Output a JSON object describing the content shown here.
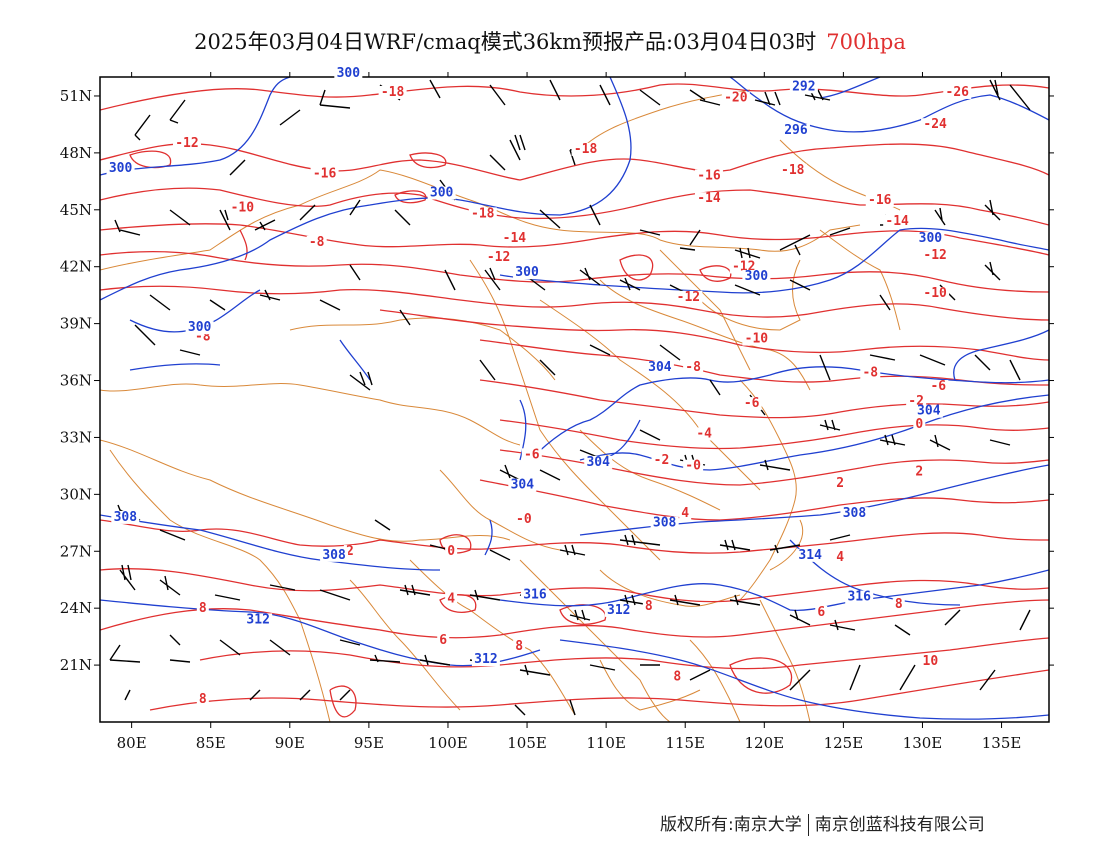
{
  "title": {
    "main": "2025年03月04日WRF/cmaq模式36km预报产品:03月04日03时",
    "level": "700hpa"
  },
  "copyright": {
    "left": "版权所有:南京大学",
    "right": "南京创蓝科技有限公司"
  },
  "colors": {
    "temperature_contour": "#e03030",
    "geopotential_contour": "#2040d0",
    "boundary": "#d9893a",
    "wind_barb": "#000000"
  },
  "map": {
    "lon_range": [
      78,
      138
    ],
    "lat_range": [
      18,
      52
    ],
    "lon_ticks": [
      {
        "value": 80,
        "label": "80E"
      },
      {
        "value": 85,
        "label": "85E"
      },
      {
        "value": 90,
        "label": "90E"
      },
      {
        "value": 95,
        "label": "95E"
      },
      {
        "value": 100,
        "label": "100E"
      },
      {
        "value": 105,
        "label": "105E"
      },
      {
        "value": 110,
        "label": "110E"
      },
      {
        "value": 115,
        "label": "115E"
      },
      {
        "value": 120,
        "label": "120E"
      },
      {
        "value": 125,
        "label": "125E"
      },
      {
        "value": 130,
        "label": "130E"
      },
      {
        "value": 135,
        "label": "135E"
      }
    ],
    "lat_ticks": [
      {
        "value": 51,
        "label": "51N"
      },
      {
        "value": 48,
        "label": "48N"
      },
      {
        "value": 45,
        "label": "45N"
      },
      {
        "value": 42,
        "label": "42N"
      },
      {
        "value": 39,
        "label": "39N"
      },
      {
        "value": 36,
        "label": "36N"
      },
      {
        "value": 33,
        "label": "33N"
      },
      {
        "value": 30,
        "label": "30N"
      },
      {
        "value": 27,
        "label": "27N"
      },
      {
        "value": 24,
        "label": "24N"
      },
      {
        "value": 21,
        "label": "21N"
      }
    ],
    "temperature_labels": [
      {
        "text": "-18",
        "lon": 96.5,
        "lat": 51.0
      },
      {
        "text": "-20",
        "lon": 118.2,
        "lat": 50.7
      },
      {
        "text": "-26",
        "lon": 132.2,
        "lat": 51.0
      },
      {
        "text": "-24",
        "lon": 130.8,
        "lat": 49.3
      },
      {
        "text": "-12",
        "lon": 83.5,
        "lat": 48.3
      },
      {
        "text": "-18",
        "lon": 108.7,
        "lat": 48.0
      },
      {
        "text": "-16",
        "lon": 92.2,
        "lat": 46.7
      },
      {
        "text": "-16",
        "lon": 116.5,
        "lat": 46.6
      },
      {
        "text": "-18",
        "lon": 121.8,
        "lat": 46.9
      },
      {
        "text": "-14",
        "lon": 116.5,
        "lat": 45.4
      },
      {
        "text": "-16",
        "lon": 127.3,
        "lat": 45.3
      },
      {
        "text": "-10",
        "lon": 87.0,
        "lat": 44.9
      },
      {
        "text": "-18",
        "lon": 102.2,
        "lat": 44.6
      },
      {
        "text": "-14",
        "lon": 128.4,
        "lat": 44.2
      },
      {
        "text": "-14",
        "lon": 104.2,
        "lat": 43.3
      },
      {
        "text": "-8",
        "lon": 91.7,
        "lat": 43.1
      },
      {
        "text": "-12",
        "lon": 103.2,
        "lat": 42.3
      },
      {
        "text": "-12",
        "lon": 130.8,
        "lat": 42.4
      },
      {
        "text": "-12",
        "lon": 118.7,
        "lat": 41.8
      },
      {
        "text": "-12",
        "lon": 115.2,
        "lat": 40.2
      },
      {
        "text": "-10",
        "lon": 130.8,
        "lat": 40.4
      },
      {
        "text": "-8",
        "lon": 84.5,
        "lat": 38.1
      },
      {
        "text": "-10",
        "lon": 119.5,
        "lat": 38.0
      },
      {
        "text": "-8",
        "lon": 115.5,
        "lat": 36.5
      },
      {
        "text": "-8",
        "lon": 126.7,
        "lat": 36.2
      },
      {
        "text": "-6",
        "lon": 131.0,
        "lat": 35.5
      },
      {
        "text": "-2",
        "lon": 129.6,
        "lat": 34.7
      },
      {
        "text": "-6",
        "lon": 119.2,
        "lat": 34.6
      },
      {
        "text": "-4",
        "lon": 116.2,
        "lat": 33.0
      },
      {
        "text": "0",
        "lon": 129.8,
        "lat": 33.5
      },
      {
        "text": "-6",
        "lon": 105.3,
        "lat": 31.9
      },
      {
        "text": "-2",
        "lon": 113.5,
        "lat": 31.6
      },
      {
        "text": "-0",
        "lon": 115.5,
        "lat": 31.3
      },
      {
        "text": "2",
        "lon": 129.8,
        "lat": 31.0
      },
      {
        "text": "2",
        "lon": 124.8,
        "lat": 30.4
      },
      {
        "text": "4",
        "lon": 115.0,
        "lat": 28.8
      },
      {
        "text": "-0",
        "lon": 104.8,
        "lat": 28.5
      },
      {
        "text": "4",
        "lon": 124.8,
        "lat": 26.5
      },
      {
        "text": "2",
        "lon": 93.8,
        "lat": 26.8
      },
      {
        "text": "0",
        "lon": 100.2,
        "lat": 26.8
      },
      {
        "text": "4",
        "lon": 100.2,
        "lat": 24.3
      },
      {
        "text": "8",
        "lon": 84.5,
        "lat": 23.8
      },
      {
        "text": "8",
        "lon": 112.7,
        "lat": 23.9
      },
      {
        "text": "6",
        "lon": 123.6,
        "lat": 23.6
      },
      {
        "text": "8",
        "lon": 128.5,
        "lat": 24.0
      },
      {
        "text": "6",
        "lon": 99.7,
        "lat": 22.1
      },
      {
        "text": "8",
        "lon": 104.5,
        "lat": 21.8
      },
      {
        "text": "10",
        "lon": 130.5,
        "lat": 21.0
      },
      {
        "text": "8",
        "lon": 114.5,
        "lat": 20.2
      },
      {
        "text": "8",
        "lon": 84.5,
        "lat": 19.0
      }
    ],
    "geopotential_labels": [
      {
        "text": "300",
        "lon": 93.7,
        "lat": 52.0
      },
      {
        "text": "292",
        "lon": 122.5,
        "lat": 51.3
      },
      {
        "text": "296",
        "lon": 122.0,
        "lat": 49.0
      },
      {
        "text": "300",
        "lon": 79.3,
        "lat": 47.0
      },
      {
        "text": "300",
        "lon": 99.6,
        "lat": 45.7
      },
      {
        "text": "300",
        "lon": 130.5,
        "lat": 43.3
      },
      {
        "text": "300",
        "lon": 105.0,
        "lat": 41.5
      },
      {
        "text": "300",
        "lon": 119.5,
        "lat": 41.3
      },
      {
        "text": "300",
        "lon": 84.3,
        "lat": 38.6
      },
      {
        "text": "304",
        "lon": 113.4,
        "lat": 36.5
      },
      {
        "text": "304",
        "lon": 130.4,
        "lat": 34.2
      },
      {
        "text": "304",
        "lon": 109.5,
        "lat": 31.5
      },
      {
        "text": "304",
        "lon": 104.7,
        "lat": 30.3
      },
      {
        "text": "308",
        "lon": 79.6,
        "lat": 28.6
      },
      {
        "text": "308",
        "lon": 113.7,
        "lat": 28.3
      },
      {
        "text": "308",
        "lon": 125.7,
        "lat": 28.8
      },
      {
        "text": "308",
        "lon": 92.8,
        "lat": 26.6
      },
      {
        "text": "316",
        "lon": 126.0,
        "lat": 24.4
      },
      {
        "text": "314",
        "lon": 122.9,
        "lat": 26.6
      },
      {
        "text": "312",
        "lon": 88.0,
        "lat": 23.2
      },
      {
        "text": "312",
        "lon": 110.8,
        "lat": 23.7
      },
      {
        "text": "316",
        "lon": 105.5,
        "lat": 24.5
      },
      {
        "text": "312",
        "lon": 102.4,
        "lat": 21.1
      }
    ]
  }
}
